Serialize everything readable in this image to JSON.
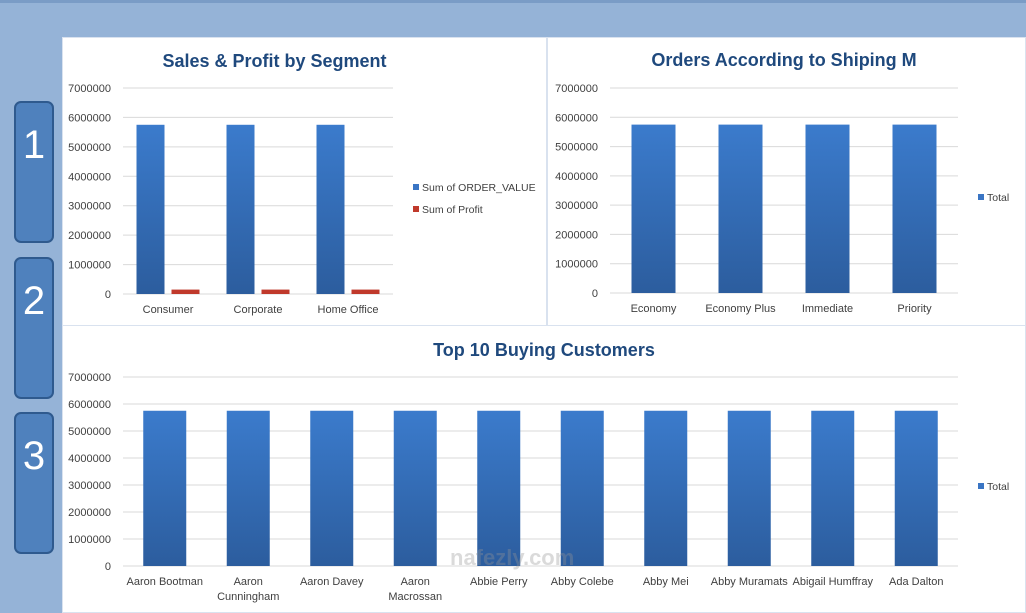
{
  "tabs": [
    "1",
    "2",
    "3"
  ],
  "watermark": "nafezly.com",
  "colors": {
    "blue": "#3a75c4",
    "red": "#c0392b",
    "title": "#1f497d"
  },
  "chart_data": [
    {
      "type": "bar",
      "title": "Sales & Profit by Segment",
      "categories": [
        "Consumer",
        "Corporate",
        "Home Office"
      ],
      "series": [
        {
          "name": "Sum of ORDER_VALUE",
          "values": [
            5750000,
            5750000,
            5750000
          ],
          "color": "#3a75c4"
        },
        {
          "name": "Sum of Profit",
          "values": [
            150000,
            150000,
            150000
          ],
          "color": "#c0392b"
        }
      ],
      "ylim": [
        0,
        7000000
      ],
      "yticks": [
        "0",
        "1000000",
        "2000000",
        "3000000",
        "4000000",
        "5000000",
        "6000000",
        "7000000"
      ],
      "grid": true,
      "legend": "right"
    },
    {
      "type": "bar",
      "title": "Orders According to Shiping M",
      "categories": [
        "Economy",
        "Economy Plus",
        "Immediate",
        "Priority"
      ],
      "series": [
        {
          "name": "Total",
          "values": [
            5750000,
            5750000,
            5750000,
            5750000
          ],
          "color": "#3a75c4"
        }
      ],
      "ylim": [
        0,
        7000000
      ],
      "yticks": [
        "0",
        "1000000",
        "2000000",
        "3000000",
        "4000000",
        "5000000",
        "6000000",
        "7000000"
      ],
      "grid": true,
      "legend": "right"
    },
    {
      "type": "bar",
      "title": "Top 10 Buying Customers",
      "categories": [
        "Aaron Bootman",
        "Aaron Cunningham",
        "Aaron Davey",
        "Aaron Macrossan",
        "Abbie Perry",
        "Abby Colebe",
        "Abby Mei",
        "Abby Muramats",
        "Abigail Humffray",
        "Ada Dalton"
      ],
      "series": [
        {
          "name": "Total",
          "values": [
            5750000,
            5750000,
            5750000,
            5750000,
            5750000,
            5750000,
            5750000,
            5750000,
            5750000,
            5750000
          ],
          "color": "#3a75c4"
        }
      ],
      "ylim": [
        0,
        7000000
      ],
      "yticks": [
        "0",
        "1000000",
        "2000000",
        "3000000",
        "4000000",
        "5000000",
        "6000000",
        "7000000"
      ],
      "grid": true,
      "legend": "right"
    }
  ]
}
